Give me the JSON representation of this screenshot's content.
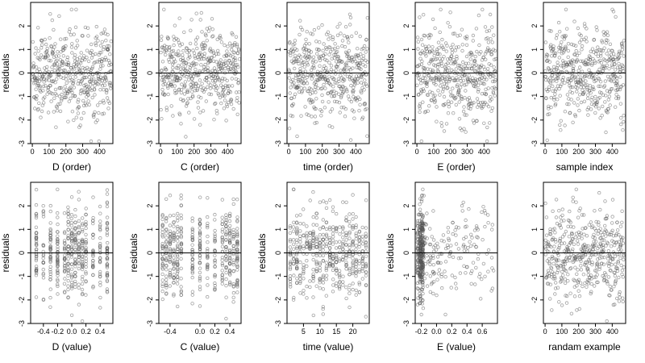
{
  "figure": {
    "ylabel_text": "residuals",
    "point_color": "#555555"
  },
  "chart_data": [
    {
      "type": "scatter",
      "panel_id": "d-order",
      "xlabel": "D (order)",
      "ylabel": "residuals",
      "xlim": [
        -10,
        480
      ],
      "ylim": [
        -3,
        3
      ],
      "xticks": [
        0,
        100,
        200,
        300,
        400
      ],
      "xtick_labels": [
        "0",
        "100",
        "200",
        "300",
        "400"
      ],
      "yticks": [
        -3,
        -2,
        -1,
        0,
        1,
        2
      ],
      "ytick_labels": [
        "-3",
        "-2",
        "-1",
        "0",
        "1",
        "2"
      ],
      "reference_line_y": 0,
      "points_generator": {
        "kind": "index",
        "n": 470,
        "x_range": [
          0,
          470
        ],
        "clusters": []
      }
    },
    {
      "type": "scatter",
      "panel_id": "c-order",
      "xlabel": "C (order)",
      "ylabel": "residuals",
      "xlim": [
        -10,
        480
      ],
      "ylim": [
        -3,
        3
      ],
      "xticks": [
        0,
        100,
        200,
        300,
        400
      ],
      "xtick_labels": [
        "0",
        "100",
        "200",
        "300",
        "400"
      ],
      "yticks": [
        -3,
        -2,
        -1,
        0,
        1,
        2
      ],
      "ytick_labels": [
        "-3",
        "-2",
        "-1",
        "0",
        "1",
        "2"
      ],
      "reference_line_y": 0,
      "points_generator": {
        "kind": "index",
        "n": 470,
        "x_range": [
          0,
          470
        ],
        "clusters": []
      }
    },
    {
      "type": "scatter",
      "panel_id": "time-order",
      "xlabel": "time (order)",
      "ylabel": "residuals",
      "xlim": [
        -10,
        480
      ],
      "ylim": [
        -3,
        3
      ],
      "xticks": [
        0,
        100,
        200,
        300,
        400
      ],
      "xtick_labels": [
        "0",
        "100",
        "200",
        "300",
        "400"
      ],
      "yticks": [
        -3,
        -2,
        -1,
        0,
        1,
        2
      ],
      "ytick_labels": [
        "-3",
        "-2",
        "-1",
        "0",
        "1",
        "2"
      ],
      "reference_line_y": 0,
      "points_generator": {
        "kind": "index",
        "n": 470,
        "x_range": [
          0,
          470
        ],
        "clusters": []
      }
    },
    {
      "type": "scatter",
      "panel_id": "e-order",
      "xlabel": "E (order)",
      "ylabel": "residuals",
      "xlim": [
        -10,
        480
      ],
      "ylim": [
        -3,
        3
      ],
      "xticks": [
        0,
        100,
        200,
        300,
        400
      ],
      "xtick_labels": [
        "0",
        "100",
        "200",
        "300",
        "400"
      ],
      "yticks": [
        -3,
        -2,
        -1,
        0,
        1,
        2
      ],
      "ytick_labels": [
        "-3",
        "-2",
        "-1",
        "0",
        "1",
        "2"
      ],
      "reference_line_y": 0,
      "points_generator": {
        "kind": "index",
        "n": 470,
        "x_range": [
          0,
          470
        ],
        "clusters": []
      }
    },
    {
      "type": "scatter",
      "panel_id": "sample-index",
      "xlabel": "sample index",
      "ylabel": "residuals",
      "xlim": [
        -10,
        480
      ],
      "ylim": [
        -3,
        3
      ],
      "xticks": [
        0,
        100,
        200,
        300,
        400
      ],
      "xtick_labels": [
        "0",
        "100",
        "200",
        "300",
        "400"
      ],
      "yticks": [
        -3,
        -2,
        -1,
        0,
        1,
        2
      ],
      "ytick_labels": [
        "-3",
        "-2",
        "-1",
        "0",
        "1",
        "2"
      ],
      "reference_line_y": 0,
      "points_generator": {
        "kind": "index",
        "n": 470,
        "x_range": [
          0,
          470
        ],
        "clusters": []
      }
    },
    {
      "type": "scatter",
      "panel_id": "d-value",
      "xlabel": "D (value)",
      "ylabel": "residuals",
      "xlim": [
        -0.58,
        0.58
      ],
      "ylim": [
        -3,
        3
      ],
      "xticks": [
        -0.4,
        -0.2,
        0.0,
        0.2,
        0.4
      ],
      "xtick_labels": [
        "-0.4",
        "-0.2",
        "0.0",
        "0.2",
        "0.4"
      ],
      "yticks": [
        -3,
        -2,
        -1,
        0,
        1,
        2
      ],
      "ytick_labels": [
        "-3",
        "-2",
        "-1",
        "0",
        "1",
        "2"
      ],
      "reference_line_y": 0,
      "points_generator": {
        "kind": "columns",
        "n": 470,
        "x_values": [
          -0.5,
          -0.4,
          -0.3,
          -0.2,
          -0.1,
          -0.05,
          0.0,
          0.05,
          0.1,
          0.15,
          0.2,
          0.3,
          0.4,
          0.5
        ]
      }
    },
    {
      "type": "scatter",
      "panel_id": "c-value",
      "xlabel": "C (value)",
      "ylabel": "residuals",
      "xlim": [
        -0.55,
        0.55
      ],
      "ylim": [
        -3,
        3
      ],
      "xticks": [
        -0.4,
        0.0,
        0.2,
        0.4
      ],
      "xtick_labels": [
        "-0.4",
        "0.0",
        "0.2",
        "0.4"
      ],
      "yticks": [
        -3,
        -2,
        -1,
        0,
        1,
        2
      ],
      "ytick_labels": [
        "-3",
        "-2",
        "-1",
        "0",
        "1",
        "2"
      ],
      "reference_line_y": 0,
      "points_generator": {
        "kind": "columns",
        "n": 470,
        "x_values": [
          -0.5,
          -0.45,
          -0.4,
          -0.35,
          -0.3,
          -0.25,
          -0.1,
          0.0,
          0.1,
          0.2,
          0.3,
          0.35,
          0.4,
          0.45,
          0.5
        ]
      }
    },
    {
      "type": "scatter",
      "panel_id": "time-value",
      "xlabel": "time (value)",
      "ylabel": "residuals",
      "xlim": [
        0,
        25
      ],
      "ylim": [
        -3,
        3
      ],
      "xticks": [
        5,
        10,
        15,
        20
      ],
      "xtick_labels": [
        "5",
        "10",
        "15",
        "20"
      ],
      "yticks": [
        -3,
        -2,
        -1,
        0,
        1,
        2
      ],
      "ytick_labels": [
        "-3",
        "-2",
        "-1",
        "0",
        "1",
        "2"
      ],
      "reference_line_y": 0,
      "points_generator": {
        "kind": "columns",
        "n": 470,
        "x_values": [
          1,
          2,
          3,
          4,
          5,
          6,
          7,
          8,
          9,
          10,
          11,
          12,
          13,
          14,
          15,
          16,
          17,
          18,
          19,
          20,
          21,
          22,
          23,
          24
        ]
      }
    },
    {
      "type": "scatter",
      "panel_id": "e-value",
      "xlabel": "E (value)",
      "ylabel": "residuals",
      "xlim": [
        -0.28,
        0.8
      ],
      "ylim": [
        -3,
        3
      ],
      "xticks": [
        -0.2,
        0.0,
        0.2,
        0.4,
        0.6
      ],
      "xtick_labels": [
        "-0.2",
        "0.0",
        "0.2",
        "0.4",
        "0.6"
      ],
      "yticks": [
        -3,
        -2,
        -1,
        0,
        1,
        2
      ],
      "ytick_labels": [
        "-3",
        "-2",
        "-1",
        "0",
        "1",
        "2"
      ],
      "reference_line_y": 0,
      "points_generator": {
        "kind": "skewed",
        "n": 470,
        "dense_x": -0.2,
        "x_range": [
          -0.25,
          0.75
        ]
      }
    },
    {
      "type": "scatter",
      "panel_id": "random-example",
      "xlabel": "randam example",
      "ylabel": "",
      "xlim": [
        -10,
        480
      ],
      "ylim": [
        -3,
        3
      ],
      "xticks": [
        0,
        100,
        200,
        300,
        400
      ],
      "xtick_labels": [
        "0",
        "100",
        "200",
        "300",
        "400"
      ],
      "yticks": [
        -2,
        -1,
        0,
        1,
        2
      ],
      "ytick_labels": [
        "-2",
        "-1",
        "0",
        "1",
        "2"
      ],
      "reference_line_y": 0,
      "points_generator": {
        "kind": "index",
        "n": 470,
        "x_range": [
          0,
          470
        ],
        "clusters": []
      }
    }
  ]
}
